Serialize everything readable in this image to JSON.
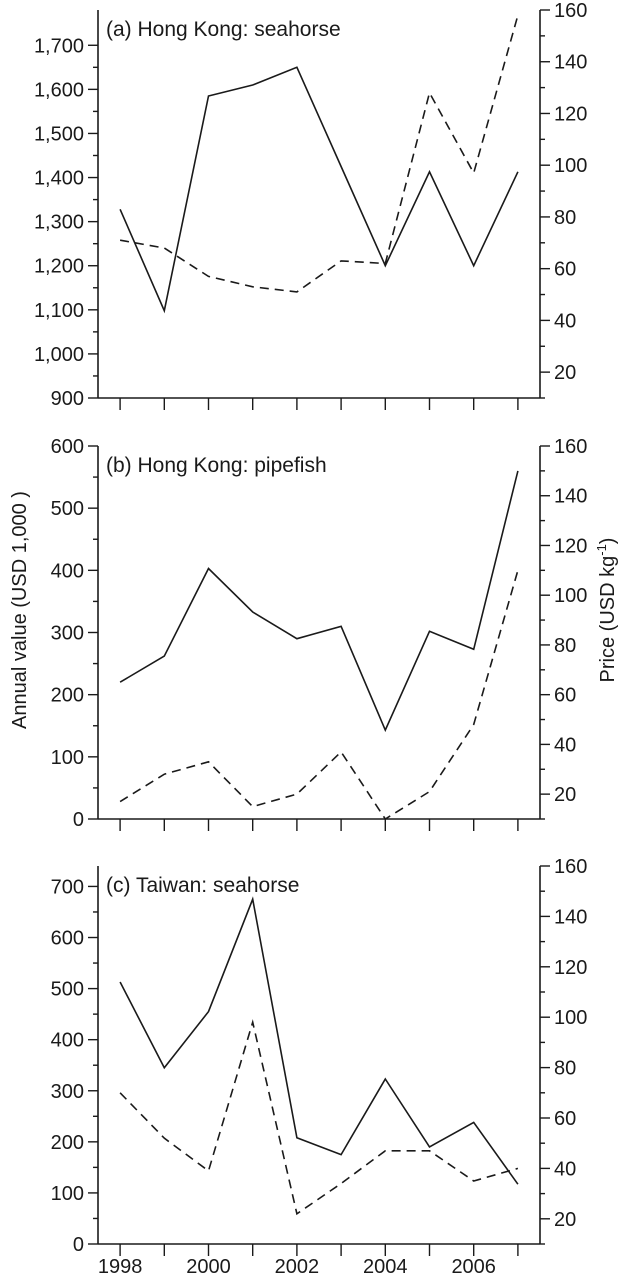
{
  "chart_data": [
    {
      "type": "line",
      "title": "(a) Hong Kong: seahorse",
      "x": [
        1998,
        1999,
        2000,
        2001,
        2002,
        2003,
        2004,
        2005,
        2006,
        2007
      ],
      "x_tick_labels": [],
      "xlim": [
        1997.5,
        2007.5
      ],
      "left_axis": {
        "ylim": [
          900,
          1780
        ],
        "ticks": [
          900,
          1000,
          1100,
          1200,
          1300,
          1400,
          1500,
          1600,
          1700
        ],
        "tick_labels": [
          "900",
          "1,000",
          "1,100",
          "1,200",
          "1,300",
          "1,400",
          "1,500",
          "1,600",
          "1,700"
        ]
      },
      "right_axis": {
        "ylim": [
          10,
          160
        ],
        "ticks": [
          20,
          40,
          60,
          80,
          100,
          120,
          140,
          160
        ],
        "tick_labels": [
          "20",
          "40",
          "60",
          "80",
          "100",
          "120",
          "140",
          "160"
        ]
      },
      "series": [
        {
          "style": "solid",
          "axis": "left",
          "values": [
            1328,
            1098,
            1585,
            1610,
            1650,
            1425,
            1200,
            1413,
            1200,
            1413
          ]
        },
        {
          "style": "dashed",
          "axis": "right",
          "values": [
            71,
            68,
            57,
            53,
            51,
            63,
            62,
            128,
            97,
            158
          ]
        }
      ]
    },
    {
      "type": "line",
      "title": "(b) Hong Kong: pipefish",
      "x": [
        1998,
        1999,
        2000,
        2001,
        2002,
        2003,
        2004,
        2005,
        2006,
        2007
      ],
      "x_tick_labels": [],
      "xlim": [
        1997.5,
        2007.5
      ],
      "left_axis": {
        "ylim": [
          0,
          600
        ],
        "ticks": [
          0,
          100,
          200,
          300,
          400,
          500,
          600
        ],
        "tick_labels": [
          "0",
          "100",
          "200",
          "300",
          "400",
          "500",
          "600"
        ]
      },
      "right_axis": {
        "ylim": [
          10,
          160
        ],
        "ticks": [
          20,
          40,
          60,
          80,
          100,
          120,
          140,
          160
        ],
        "tick_labels": [
          "20",
          "40",
          "60",
          "80",
          "100",
          "120",
          "140",
          "160"
        ]
      },
      "series": [
        {
          "style": "solid",
          "axis": "left",
          "values": [
            220,
            262,
            403,
            333,
            290,
            310,
            143,
            302,
            273,
            560
          ]
        },
        {
          "style": "dashed",
          "axis": "right",
          "values": [
            17,
            28,
            33,
            15,
            20,
            37,
            10,
            21,
            48,
            110
          ]
        }
      ]
    },
    {
      "type": "line",
      "title": "(c) Taiwan:  seahorse",
      "x": [
        1998,
        1999,
        2000,
        2001,
        2002,
        2003,
        2004,
        2005,
        2006,
        2007
      ],
      "x_tick_labels": [
        "1998",
        "",
        "2000",
        "",
        "2002",
        "",
        "2004",
        "",
        "2006",
        ""
      ],
      "xlim": [
        1997.5,
        2007.5
      ],
      "left_axis": {
        "ylim": [
          0,
          740
        ],
        "ticks": [
          0,
          100,
          200,
          300,
          400,
          500,
          600,
          700
        ],
        "tick_labels": [
          "0",
          "100",
          "200",
          "300",
          "400",
          "500",
          "600",
          "700"
        ]
      },
      "right_axis": {
        "ylim": [
          10,
          160
        ],
        "ticks": [
          20,
          40,
          60,
          80,
          100,
          120,
          140,
          160
        ],
        "tick_labels": [
          "20",
          "40",
          "60",
          "80",
          "100",
          "120",
          "140",
          "160"
        ]
      },
      "series": [
        {
          "style": "solid",
          "axis": "left",
          "values": [
            513,
            345,
            455,
            675,
            208,
            175,
            323,
            190,
            238,
            117
          ]
        },
        {
          "style": "dashed",
          "axis": "right",
          "values": [
            70,
            52,
            39,
            98,
            22,
            34,
            47,
            47,
            35,
            40
          ]
        }
      ]
    }
  ],
  "ylabel_left": "Annual value (USD  1,000 )",
  "ylabel_right": "Price (USD kg",
  "ylabel_right_sup": "-1",
  "ylabel_right_close": ")"
}
